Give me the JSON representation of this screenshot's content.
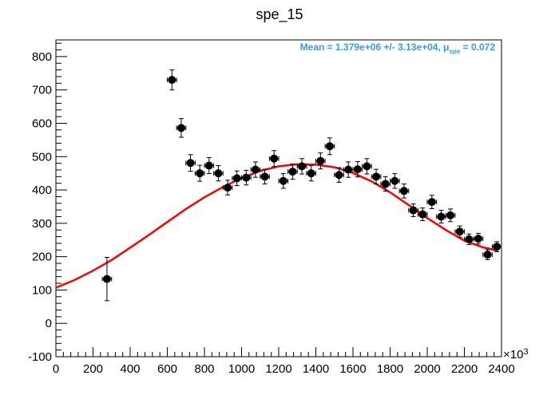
{
  "chart_data": {
    "type": "scatter",
    "title": "spe_15",
    "annotation": {
      "prefix": "Mean = 1.379e+06 +/- 3.13e+04, μ",
      "subscript": "spe",
      "suffix": " = 0.072",
      "color": "#3399ff"
    },
    "x_multiplier_label": "×10",
    "x_multiplier_exp": "3",
    "xlim": [
      0,
      2400
    ],
    "ylim": [
      -100,
      850
    ],
    "xticks": [
      0,
      200,
      400,
      600,
      800,
      1000,
      1200,
      1400,
      1600,
      1800,
      2000,
      2200,
      2400
    ],
    "yticks": [
      -100,
      0,
      100,
      200,
      300,
      400,
      500,
      600,
      700,
      800
    ],
    "points": [
      {
        "x": 275,
        "y": 133,
        "ex": 25,
        "ey": 65
      },
      {
        "x": 625,
        "y": 730,
        "ex": 25,
        "ey": 30
      },
      {
        "x": 675,
        "y": 586,
        "ex": 25,
        "ey": 28
      },
      {
        "x": 725,
        "y": 481,
        "ex": 25,
        "ey": 25
      },
      {
        "x": 775,
        "y": 450,
        "ex": 25,
        "ey": 24
      },
      {
        "x": 825,
        "y": 473,
        "ex": 25,
        "ey": 24
      },
      {
        "x": 875,
        "y": 450,
        "ex": 25,
        "ey": 23
      },
      {
        "x": 925,
        "y": 407,
        "ex": 25,
        "ey": 22
      },
      {
        "x": 975,
        "y": 435,
        "ex": 25,
        "ey": 22
      },
      {
        "x": 1025,
        "y": 437,
        "ex": 25,
        "ey": 22
      },
      {
        "x": 1075,
        "y": 461,
        "ex": 25,
        "ey": 23
      },
      {
        "x": 1125,
        "y": 440,
        "ex": 25,
        "ey": 22
      },
      {
        "x": 1175,
        "y": 494,
        "ex": 25,
        "ey": 24
      },
      {
        "x": 1225,
        "y": 427,
        "ex": 25,
        "ey": 22
      },
      {
        "x": 1275,
        "y": 455,
        "ex": 25,
        "ey": 23
      },
      {
        "x": 1325,
        "y": 471,
        "ex": 25,
        "ey": 23
      },
      {
        "x": 1375,
        "y": 450,
        "ex": 25,
        "ey": 23
      },
      {
        "x": 1425,
        "y": 487,
        "ex": 25,
        "ey": 24
      },
      {
        "x": 1475,
        "y": 531,
        "ex": 25,
        "ey": 25
      },
      {
        "x": 1525,
        "y": 445,
        "ex": 25,
        "ey": 22
      },
      {
        "x": 1575,
        "y": 461,
        "ex": 25,
        "ey": 23
      },
      {
        "x": 1625,
        "y": 462,
        "ex": 25,
        "ey": 23
      },
      {
        "x": 1675,
        "y": 471,
        "ex": 25,
        "ey": 23
      },
      {
        "x": 1725,
        "y": 440,
        "ex": 25,
        "ey": 22
      },
      {
        "x": 1775,
        "y": 418,
        "ex": 25,
        "ey": 22
      },
      {
        "x": 1825,
        "y": 427,
        "ex": 25,
        "ey": 22
      },
      {
        "x": 1875,
        "y": 397,
        "ex": 25,
        "ey": 21
      },
      {
        "x": 1925,
        "y": 339,
        "ex": 25,
        "ey": 19
      },
      {
        "x": 1975,
        "y": 327,
        "ex": 25,
        "ey": 19
      },
      {
        "x": 2025,
        "y": 364,
        "ex": 25,
        "ey": 20
      },
      {
        "x": 2075,
        "y": 320,
        "ex": 25,
        "ey": 19
      },
      {
        "x": 2125,
        "y": 324,
        "ex": 25,
        "ey": 19
      },
      {
        "x": 2175,
        "y": 275,
        "ex": 25,
        "ey": 17
      },
      {
        "x": 2225,
        "y": 252,
        "ex": 25,
        "ey": 16
      },
      {
        "x": 2275,
        "y": 254,
        "ex": 25,
        "ey": 16
      },
      {
        "x": 2325,
        "y": 206,
        "ex": 25,
        "ey": 15
      },
      {
        "x": 2375,
        "y": 230,
        "ex": 25,
        "ey": 15
      }
    ],
    "fit_curve": {
      "color": "#ff0000",
      "x": [
        0,
        100,
        200,
        300,
        400,
        500,
        600,
        700,
        800,
        900,
        1000,
        1100,
        1200,
        1300,
        1400,
        1500,
        1600,
        1700,
        1800,
        1900,
        2000,
        2100,
        2200,
        2300,
        2380
      ],
      "y": [
        107,
        130,
        158,
        190,
        227,
        265,
        304,
        343,
        378,
        409,
        436,
        457,
        471,
        477,
        476,
        468,
        451,
        426,
        393,
        355,
        316,
        280,
        248,
        228,
        218
      ]
    }
  }
}
